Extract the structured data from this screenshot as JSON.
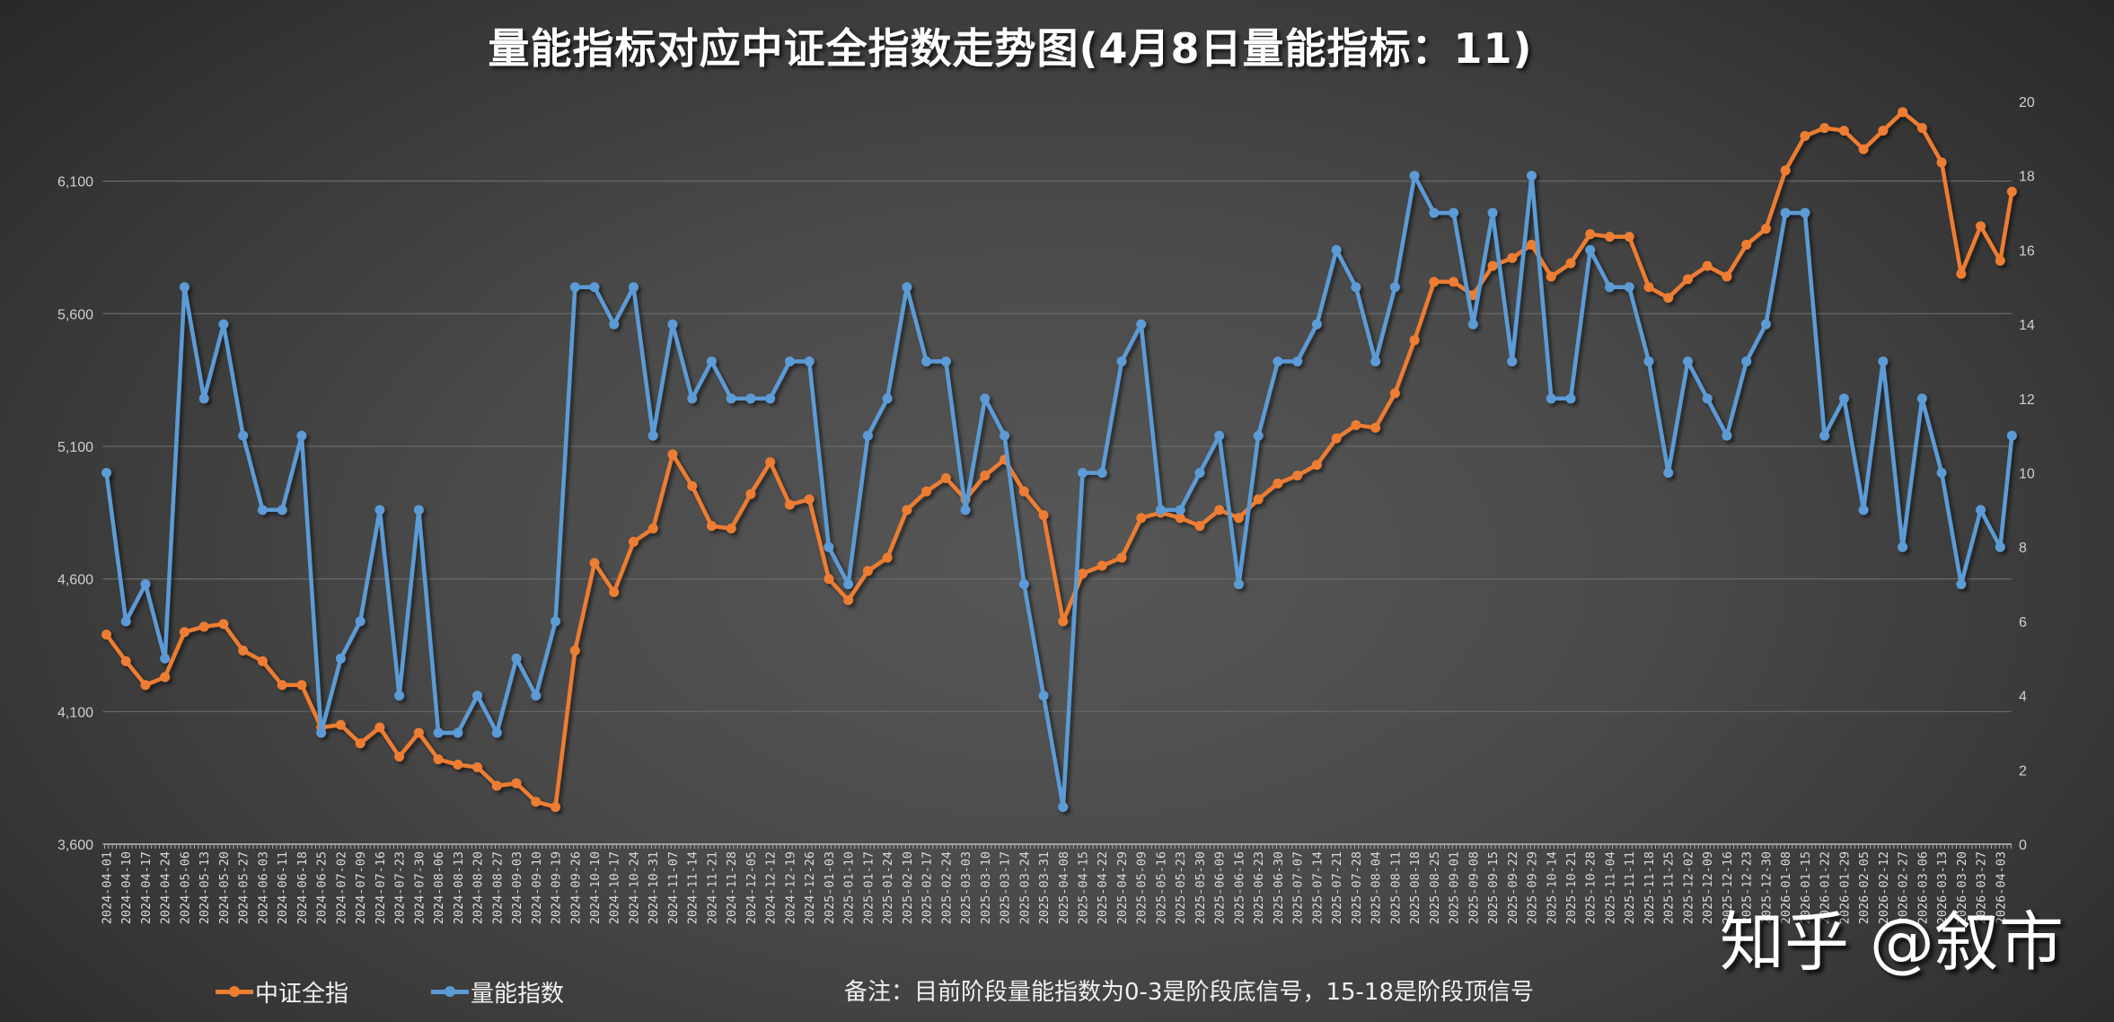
{
  "chart_data": {
    "type": "line",
    "title": "量能指标对应中证全指数走势图(4月8日量能指标：11)",
    "note": "备注：目前阶段量能指数为0-3是阶段底信号，15-18是阶段顶信号",
    "watermark": "知乎 @叙市",
    "legend_position": "bottom-left",
    "grid": true,
    "y_left": {
      "ticks": [
        "3,600",
        "4,100",
        "4,600",
        "5,100",
        "5,600",
        "6,100"
      ],
      "range": [
        3600,
        6400
      ]
    },
    "y_right": {
      "ticks": [
        "0",
        "2",
        "4",
        "6",
        "8",
        "10",
        "12",
        "14",
        "16",
        "18",
        "20"
      ],
      "range": [
        0,
        20
      ]
    },
    "x_tick_labels": [
      "2024-04-01",
      "2024-04-10",
      "2024-04-17",
      "2024-04-24",
      "2024-05-06",
      "2024-05-13",
      "2024-05-20",
      "2024-05-27",
      "2024-06-03",
      "2024-06-11",
      "2024-06-18",
      "2024-06-25",
      "2024-07-02",
      "2024-07-09",
      "2024-07-16",
      "2024-07-23",
      "2024-07-30",
      "2024-08-06",
      "2024-08-13",
      "2024-08-20",
      "2024-08-27",
      "2024-09-03",
      "2024-09-10",
      "2024-09-19",
      "2024-09-26",
      "2024-10-10",
      "2024-10-17",
      "2024-10-24",
      "2024-10-31",
      "2024-11-07",
      "2024-11-14",
      "2024-11-21",
      "2024-11-28",
      "2024-12-05",
      "2024-12-12",
      "2024-12-19",
      "2024-12-26",
      "2025-01-03",
      "2025-01-10",
      "2025-01-17",
      "2025-01-24",
      "2025-02-10",
      "2025-02-17",
      "2025-02-24",
      "2025-03-03",
      "2025-03-10",
      "2025-03-17",
      "2025-03-24",
      "2025-03-31",
      "2025-04-08",
      "2025-04-15",
      "2025-04-22",
      "2025-04-29",
      "2025-05-09",
      "2025-05-16",
      "2025-05-23",
      "2025-05-30",
      "2025-06-09",
      "2025-06-16",
      "2025-06-23",
      "2025-06-30",
      "2025-07-07",
      "2025-07-14",
      "2025-07-21",
      "2025-07-28",
      "2025-08-04",
      "2025-08-11",
      "2025-08-18",
      "2025-08-25",
      "2025-09-01",
      "2025-09-08",
      "2025-09-15",
      "2025-09-22",
      "2025-09-29",
      "2025-10-14",
      "2025-10-21",
      "2025-10-28",
      "2025-11-04",
      "2025-11-11",
      "2025-11-18",
      "2025-11-25",
      "2025-12-02",
      "2025-12-09",
      "2025-12-16",
      "2025-12-23",
      "2025-12-30",
      "2026-01-08",
      "2026-01-15",
      "2026-01-22",
      "2026-01-29",
      "2026-02-05",
      "2026-02-12",
      "2026-02-27",
      "2026-03-06",
      "2026-03-13",
      "2026-03-20",
      "2026-03-27",
      "2026-04-03"
    ],
    "x": [
      "2024-04-01",
      "2024-04-10",
      "2024-04-17",
      "2024-04-24",
      "2024-05-06",
      "2024-05-13",
      "2024-05-20",
      "2024-05-27",
      "2024-06-03",
      "2024-06-11",
      "2024-06-18",
      "2024-06-25",
      "2024-07-02",
      "2024-07-09",
      "2024-07-16",
      "2024-07-23",
      "2024-07-30",
      "2024-08-06",
      "2024-08-13",
      "2024-08-20",
      "2024-08-27",
      "2024-09-03",
      "2024-09-10",
      "2024-09-19",
      "2024-09-26",
      "2024-10-10",
      "2024-10-17",
      "2024-10-24",
      "2024-10-31",
      "2024-11-07",
      "2024-11-14",
      "2024-11-21",
      "2024-11-28",
      "2024-12-05",
      "2024-12-12",
      "2024-12-19",
      "2024-12-26",
      "2025-01-03",
      "2025-01-10",
      "2025-01-17",
      "2025-01-24",
      "2025-02-10",
      "2025-02-17",
      "2025-02-24",
      "2025-03-03",
      "2025-03-10",
      "2025-03-17",
      "2025-03-24",
      "2025-03-31",
      "2025-04-08",
      "2025-04-15",
      "2025-04-22",
      "2025-04-29",
      "2025-05-09",
      "2025-05-16",
      "2025-05-23",
      "2025-05-30",
      "2025-06-09",
      "2025-06-16",
      "2025-06-23",
      "2025-06-30",
      "2025-07-07",
      "2025-07-14",
      "2025-07-21",
      "2025-07-28",
      "2025-08-04",
      "2025-08-11",
      "2025-08-18",
      "2025-08-25",
      "2025-09-01",
      "2025-09-08",
      "2025-09-15",
      "2025-09-22",
      "2025-09-29",
      "2025-10-14",
      "2025-10-21",
      "2025-10-28",
      "2025-11-04",
      "2025-11-11",
      "2025-11-18",
      "2025-11-25",
      "2025-12-02",
      "2025-12-09",
      "2025-12-16",
      "2025-12-23",
      "2025-12-30",
      "2026-01-08",
      "2026-01-15",
      "2026-01-22",
      "2026-01-29",
      "2026-02-05",
      "2026-02-12",
      "2026-02-27",
      "2026-03-06",
      "2026-03-13",
      "2026-03-20",
      "2026-03-27",
      "2026-04-03",
      "2026-04-08"
    ],
    "series": [
      {
        "name": "中证全指",
        "axis": "left",
        "color": "#ED7D31",
        "values": [
          4390,
          4290,
          4200,
          4230,
          4400,
          4420,
          4430,
          4330,
          4290,
          4200,
          4200,
          4040,
          4050,
          3980,
          4040,
          3930,
          4020,
          3920,
          3900,
          3890,
          3820,
          3830,
          3760,
          3740,
          4330,
          4660,
          4550,
          4740,
          4790,
          5070,
          4950,
          4800,
          4790,
          4920,
          5040,
          4880,
          4900,
          4600,
          4520,
          4630,
          4680,
          4860,
          4930,
          4980,
          4900,
          4990,
          5050,
          4930,
          4840,
          4440,
          4620,
          4650,
          4680,
          4830,
          4850,
          4830,
          4800,
          4860,
          4830,
          4900,
          4960,
          4990,
          5030,
          5130,
          5180,
          5170,
          5300,
          5500,
          5720,
          5720,
          5670,
          5780,
          5810,
          5860,
          5740,
          5790,
          5900,
          5890,
          5890,
          5700,
          5660,
          5730,
          5780,
          5740,
          5860,
          5920,
          6140,
          6270,
          6300,
          6290,
          6220,
          6290,
          6360,
          6300,
          6170,
          5750,
          5930,
          5800,
          6060
        ]
      },
      {
        "name": "量能指数",
        "axis": "right",
        "color": "#5B9BD5",
        "values": [
          10,
          6,
          7,
          5,
          15,
          12,
          14,
          11,
          9,
          9,
          11,
          3,
          5,
          6,
          9,
          4,
          9,
          3,
          3,
          4,
          3,
          5,
          4,
          6,
          15,
          15,
          14,
          15,
          11,
          14,
          12,
          13,
          12,
          12,
          12,
          13,
          13,
          8,
          7,
          11,
          12,
          15,
          13,
          13,
          9,
          12,
          11,
          7,
          4,
          1,
          10,
          10,
          13,
          14,
          9,
          9,
          10,
          11,
          7,
          11,
          13,
          13,
          14,
          16,
          15,
          13,
          15,
          18,
          17,
          17,
          14,
          17,
          13,
          18,
          12,
          12,
          16,
          15,
          15,
          13,
          10,
          13,
          12,
          11,
          13,
          14,
          17,
          17,
          11,
          12,
          9,
          13,
          8,
          12,
          10,
          7,
          9,
          8,
          11
        ]
      }
    ]
  }
}
